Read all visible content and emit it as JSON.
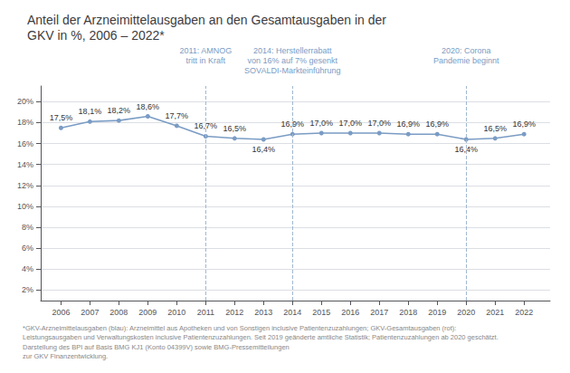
{
  "chart_data": {
    "type": "line",
    "title": "Anteil der Arzneimittelausgaben an den Gesamtausgaben in der\nGKV in %, 2006 – 2022*",
    "x": [
      2006,
      2007,
      2008,
      2009,
      2010,
      2011,
      2012,
      2013,
      2014,
      2015,
      2016,
      2017,
      2018,
      2019,
      2020,
      2021,
      2022
    ],
    "values": [
      17.5,
      18.1,
      18.2,
      18.6,
      17.7,
      16.7,
      16.5,
      16.4,
      16.9,
      17.0,
      17.0,
      17.0,
      16.9,
      16.9,
      16.4,
      16.5,
      16.9
    ],
    "value_labels": [
      "17,5%",
      "18,1%",
      "18,2%",
      "18,6%",
      "17,7%",
      "16,7%",
      "16,5%",
      "16,4%",
      "16,9%",
      "17,0%",
      "17,0%",
      "17,0%",
      "16,9%",
      "16,9%",
      "16,4%",
      "16,5%",
      "16,9%"
    ],
    "color": "#7a9cc4",
    "marker": "circle",
    "data_labels": true,
    "xlim": [
      2005.3,
      2022.9
    ],
    "xticks": [
      2006,
      2007,
      2008,
      2009,
      2010,
      2011,
      2012,
      2013,
      2014,
      2015,
      2016,
      2017,
      2018,
      2019,
      2020,
      2021,
      2022
    ],
    "ylim": [
      1.0,
      21.5
    ],
    "yticks": [
      {
        "value": 2,
        "label": "2%"
      },
      {
        "value": 4,
        "label": "4%"
      },
      {
        "value": 6,
        "label": "6%"
      },
      {
        "value": 8,
        "label": "8%"
      },
      {
        "value": 10,
        "label": "10%"
      },
      {
        "value": 12,
        "label": "12%"
      },
      {
        "value": 14,
        "label": "14%"
      },
      {
        "value": 16,
        "label": "16%"
      },
      {
        "value": 18,
        "label": "18%"
      },
      {
        "value": 20,
        "label": "20%"
      }
    ],
    "grid": true,
    "annotations": [
      {
        "x": 2011,
        "text": "2011: AMNOG\ntritt in Kraft"
      },
      {
        "x": 2014,
        "text": "2014: Herstellerrabatt\nvon 16% auf 7% gesenkt\nSOVALDI-Markteinführung"
      },
      {
        "x": 2020,
        "text": "2020: Corona\nPandemie beginnt"
      }
    ],
    "notes": [
      "*GKV-Arzneimittelausgaben (blau): Arzneimittel aus Apotheken und von Sonstigen inclusive Patientenzuzahlungen; GKV-Gesamtausgaben (rot):",
      "Leistungsausgaben und Verwaltungskosten inclusive Patientenzuzahlungen. Seit 2019 geänderte amtliche Statistik; Patientenzuzahlungen ab 2020 geschätzt.",
      "Darstellung des BPI auf Basis BMG KJ1 (Konto 04399V) sowie BMG-Pressemitteilungen",
      "zur GKV Finanzentwicklung."
    ]
  }
}
